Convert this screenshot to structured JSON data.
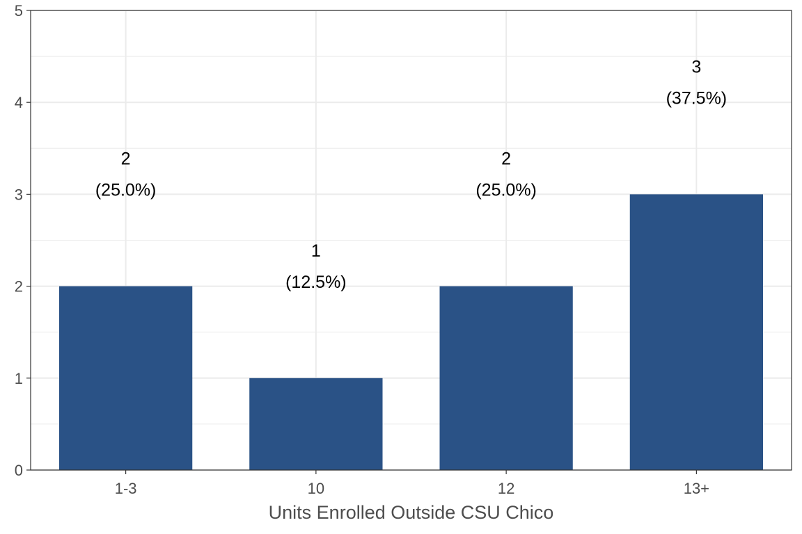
{
  "chart_data": {
    "type": "bar",
    "categories": [
      "1-3",
      "10",
      "12",
      "13+"
    ],
    "values": [
      2,
      1,
      2,
      3
    ],
    "percent_labels": [
      "(25.0%)",
      "(12.5%)",
      "(25.0%)",
      "(37.5%)"
    ],
    "title": "",
    "xlabel": "Units Enrolled Outside CSU Chico",
    "ylabel": "",
    "ylim": [
      0,
      5
    ],
    "yticks": [
      0,
      1,
      2,
      3,
      4,
      5
    ],
    "grid": true,
    "legend": "none"
  },
  "colors": {
    "bar": "#2a5286",
    "grid": "#ebebeb",
    "panel_border": "#333333",
    "text": "#4d4d4d",
    "label": "#000000"
  }
}
